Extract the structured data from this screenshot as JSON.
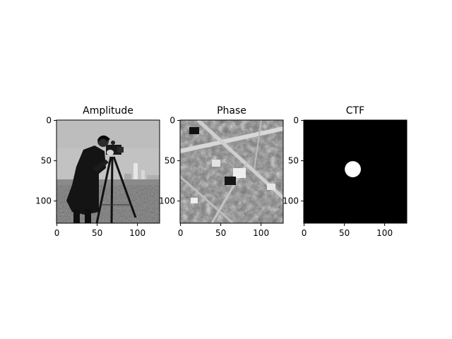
{
  "figure": {
    "background": "#ffffff",
    "panels": [
      {
        "title": "Amplitude",
        "type": "image",
        "description_content": "grayscale photo",
        "xlim": [
          0,
          127
        ],
        "ylim_inverted": [
          127,
          0
        ],
        "xticks": [
          0,
          50,
          100
        ],
        "yticks": [
          0,
          50,
          100
        ],
        "colormap": "gray"
      },
      {
        "title": "Phase",
        "type": "image",
        "xlim": [
          0,
          127
        ],
        "ylim_inverted": [
          127,
          0
        ],
        "xticks": [
          0,
          50,
          100
        ],
        "yticks": [
          0,
          50,
          100
        ],
        "colormap": "gray"
      },
      {
        "title": "CTF",
        "type": "image",
        "xlim": [
          0,
          127
        ],
        "ylim_inverted": [
          127,
          0
        ],
        "xticks": [
          0,
          50,
          100
        ],
        "yticks": [
          0,
          50,
          100
        ],
        "colormap": "gray",
        "circle": {
          "cx": 64,
          "cy": 64,
          "r": 10
        }
      }
    ]
  },
  "chart_data": [
    {
      "type": "heatmap",
      "title": "Amplitude",
      "xlim": [
        0,
        127
      ],
      "ylim": [
        127,
        0
      ],
      "xticks": [
        0,
        50,
        100
      ],
      "yticks": [
        0,
        50,
        100
      ],
      "grid": false
    },
    {
      "type": "heatmap",
      "title": "Phase",
      "xlim": [
        0,
        127
      ],
      "ylim": [
        127,
        0
      ],
      "xticks": [
        0,
        50,
        100
      ],
      "yticks": [
        0,
        50,
        100
      ],
      "grid": false
    },
    {
      "type": "heatmap",
      "title": "CTF",
      "xlim": [
        0,
        127
      ],
      "ylim": [
        127,
        0
      ],
      "xticks": [
        0,
        50,
        100
      ],
      "yticks": [
        0,
        50,
        100
      ],
      "grid": false,
      "pupil_center": [
        64,
        64
      ],
      "pupil_radius": 10
    }
  ]
}
